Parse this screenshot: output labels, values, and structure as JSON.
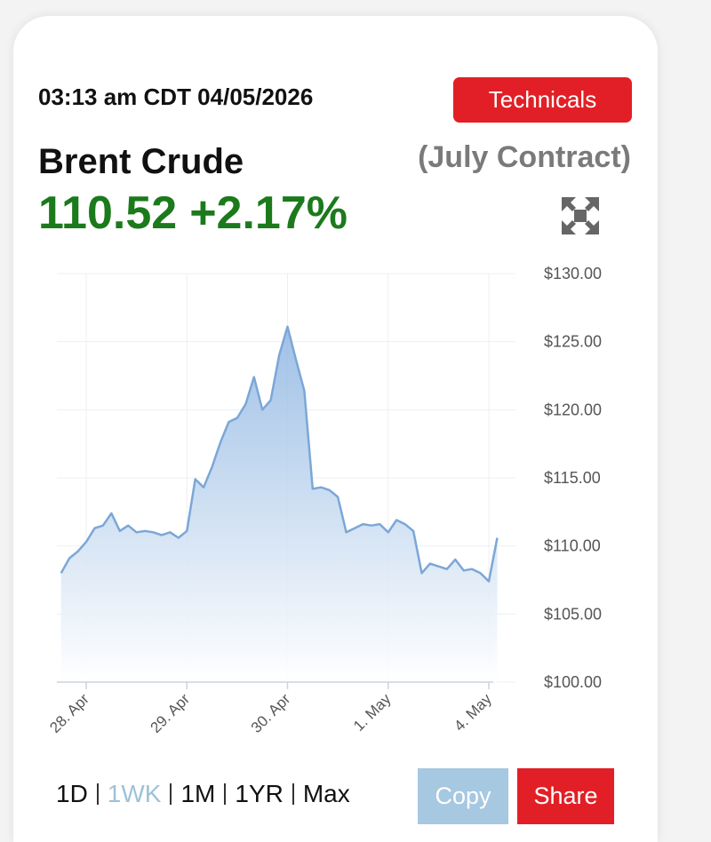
{
  "ui": {
    "timestamp": "03:13 am CDT 04/05/2026",
    "technicals": "Technicals",
    "contract": "(July Contract)",
    "price": "110.52",
    "change": "+2.17%",
    "ranges": [
      "1D",
      "1WK",
      "1M",
      "1YR",
      "Max"
    ],
    "active_range": 1,
    "copy": "Copy",
    "share": "Share"
  },
  "chart_data": {
    "type": "area",
    "title": "Brent Crude",
    "categories": [
      null,
      null,
      null,
      "28. Apr",
      null,
      null,
      null,
      null,
      null,
      null,
      null,
      null,
      null,
      null,
      null,
      "29. Apr",
      null,
      null,
      null,
      null,
      null,
      null,
      null,
      null,
      null,
      null,
      null,
      "30. Apr",
      null,
      null,
      null,
      null,
      null,
      null,
      null,
      null,
      null,
      null,
      null,
      "1. May",
      null,
      null,
      null,
      null,
      null,
      null,
      null,
      null,
      null,
      null,
      null,
      "4. May",
      null
    ],
    "values": [
      108.0,
      109.1,
      109.6,
      110.3,
      111.3,
      111.5,
      112.4,
      111.1,
      111.5,
      111.0,
      111.1,
      111.0,
      110.8,
      111.0,
      110.6,
      111.1,
      114.9,
      114.3,
      115.8,
      117.6,
      119.1,
      119.4,
      120.4,
      122.4,
      120.0,
      120.7,
      124.0,
      126.1,
      123.7,
      121.4,
      114.2,
      114.3,
      114.1,
      113.6,
      111.0,
      111.3,
      111.6,
      111.5,
      111.6,
      111.0,
      111.9,
      111.6,
      111.1,
      108.0,
      108.7,
      108.5,
      108.3,
      109.0,
      108.2,
      108.3,
      108.0,
      107.4,
      110.6
    ],
    "color": "#7ba7d7",
    "ylim": [
      100,
      130
    ],
    "yticks": [
      {
        "value": 100,
        "label": "$100.00"
      },
      {
        "value": 105,
        "label": "$105.00"
      },
      {
        "value": 110,
        "label": "$110.00"
      },
      {
        "value": 115,
        "label": "$115.00"
      },
      {
        "value": 120,
        "label": "$120.00"
      },
      {
        "value": 125,
        "label": "$125.00"
      },
      {
        "value": 130,
        "label": "$130.00"
      }
    ],
    "grid": true
  }
}
